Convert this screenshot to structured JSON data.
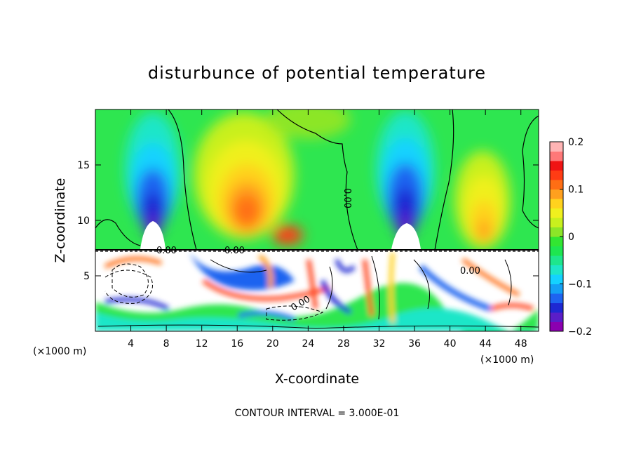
{
  "chart_data": {
    "type": "heatmap",
    "title": "disturbunce of potential temperature",
    "xlabel": "X-coordinate",
    "ylabel": "Z-coordinate",
    "x_unit_left": "(×1000 m)",
    "x_unit_right": "(×1000 m)",
    "footer": "CONTOUR INTERVAL = 3.000E-01",
    "xlim": [
      0,
      50
    ],
    "ylim": [
      0,
      20
    ],
    "x_ticks": [
      4,
      8,
      12,
      16,
      20,
      24,
      28,
      32,
      36,
      40,
      44,
      48
    ],
    "y_ticks": [
      5,
      10,
      15
    ],
    "colorbar": {
      "range": [
        -0.2,
        0.2
      ],
      "ticks": [
        0.2,
        0.1,
        0,
        -0.1,
        -0.2
      ],
      "tick_labels": [
        "0.2",
        "0.1",
        "0",
        "−0.1",
        "−0.2"
      ],
      "colors": [
        "#8b00b0",
        "#5a1ec8",
        "#1e28d2",
        "#1e64f0",
        "#14a0f5",
        "#14d2ff",
        "#1ee6c8",
        "#1ee68c",
        "#1ee650",
        "#32e632",
        "#8ce628",
        "#c8f01e",
        "#f0f01e",
        "#ffd21e",
        "#ffa01e",
        "#ff6e14",
        "#ff3c14",
        "#f01414",
        "#ff7878",
        "#ffb4b4"
      ]
    },
    "contour_labels": [
      {
        "text": "0.00",
        "x": 13.5,
        "y": 7.3
      },
      {
        "text": "0.00",
        "x": 8.6,
        "y": 7.3
      },
      {
        "text": "0.00",
        "x": 27.7,
        "y": 11.0,
        "rotated": true
      },
      {
        "text": "0.00",
        "x": 23.3,
        "y": 2.3
      },
      {
        "text": "0.00",
        "x": 42.5,
        "y": 5.6
      }
    ],
    "features": [
      {
        "kind": "cold_plume",
        "x_center": 6.5,
        "top_z": 17.5,
        "min_value": -0.2
      },
      {
        "kind": "warm_plume",
        "x_center": 17.0,
        "top_z": 16.0,
        "max_value": 0.14
      },
      {
        "kind": "cold_plume",
        "x_center": 35.0,
        "top_z": 18.0,
        "min_value": -0.2
      },
      {
        "kind": "warm_plume",
        "x_center": 43.0,
        "top_z": 14.0,
        "max_value": 0.1
      },
      {
        "kind": "turbulent_layer",
        "z_range": [
          0,
          7.4
        ]
      }
    ]
  }
}
